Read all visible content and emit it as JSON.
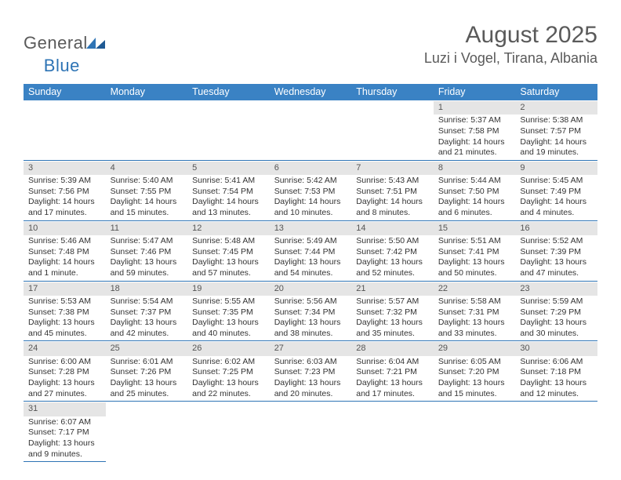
{
  "brand": {
    "part1": "General",
    "part2": "Blue"
  },
  "title": "August 2025",
  "location": "Luzi i Vogel, Tirana, Albania",
  "colors": {
    "header_bg": "#3a82c4",
    "header_text": "#ffffff",
    "daynum_bg": "#e5e5e5",
    "rule": "#2e74b5",
    "text": "#333333",
    "title_text": "#5a5a5a",
    "logo_blue": "#2e74b5"
  },
  "day_headers": [
    "Sunday",
    "Monday",
    "Tuesday",
    "Wednesday",
    "Thursday",
    "Friday",
    "Saturday"
  ],
  "weeks": [
    [
      null,
      null,
      null,
      null,
      null,
      {
        "n": "1",
        "sr": "5:37 AM",
        "ss": "7:58 PM",
        "dl": "14 hours and 21 minutes."
      },
      {
        "n": "2",
        "sr": "5:38 AM",
        "ss": "7:57 PM",
        "dl": "14 hours and 19 minutes."
      }
    ],
    [
      {
        "n": "3",
        "sr": "5:39 AM",
        "ss": "7:56 PM",
        "dl": "14 hours and 17 minutes."
      },
      {
        "n": "4",
        "sr": "5:40 AM",
        "ss": "7:55 PM",
        "dl": "14 hours and 15 minutes."
      },
      {
        "n": "5",
        "sr": "5:41 AM",
        "ss": "7:54 PM",
        "dl": "14 hours and 13 minutes."
      },
      {
        "n": "6",
        "sr": "5:42 AM",
        "ss": "7:53 PM",
        "dl": "14 hours and 10 minutes."
      },
      {
        "n": "7",
        "sr": "5:43 AM",
        "ss": "7:51 PM",
        "dl": "14 hours and 8 minutes."
      },
      {
        "n": "8",
        "sr": "5:44 AM",
        "ss": "7:50 PM",
        "dl": "14 hours and 6 minutes."
      },
      {
        "n": "9",
        "sr": "5:45 AM",
        "ss": "7:49 PM",
        "dl": "14 hours and 4 minutes."
      }
    ],
    [
      {
        "n": "10",
        "sr": "5:46 AM",
        "ss": "7:48 PM",
        "dl": "14 hours and 1 minute."
      },
      {
        "n": "11",
        "sr": "5:47 AM",
        "ss": "7:46 PM",
        "dl": "13 hours and 59 minutes."
      },
      {
        "n": "12",
        "sr": "5:48 AM",
        "ss": "7:45 PM",
        "dl": "13 hours and 57 minutes."
      },
      {
        "n": "13",
        "sr": "5:49 AM",
        "ss": "7:44 PM",
        "dl": "13 hours and 54 minutes."
      },
      {
        "n": "14",
        "sr": "5:50 AM",
        "ss": "7:42 PM",
        "dl": "13 hours and 52 minutes."
      },
      {
        "n": "15",
        "sr": "5:51 AM",
        "ss": "7:41 PM",
        "dl": "13 hours and 50 minutes."
      },
      {
        "n": "16",
        "sr": "5:52 AM",
        "ss": "7:39 PM",
        "dl": "13 hours and 47 minutes."
      }
    ],
    [
      {
        "n": "17",
        "sr": "5:53 AM",
        "ss": "7:38 PM",
        "dl": "13 hours and 45 minutes."
      },
      {
        "n": "18",
        "sr": "5:54 AM",
        "ss": "7:37 PM",
        "dl": "13 hours and 42 minutes."
      },
      {
        "n": "19",
        "sr": "5:55 AM",
        "ss": "7:35 PM",
        "dl": "13 hours and 40 minutes."
      },
      {
        "n": "20",
        "sr": "5:56 AM",
        "ss": "7:34 PM",
        "dl": "13 hours and 38 minutes."
      },
      {
        "n": "21",
        "sr": "5:57 AM",
        "ss": "7:32 PM",
        "dl": "13 hours and 35 minutes."
      },
      {
        "n": "22",
        "sr": "5:58 AM",
        "ss": "7:31 PM",
        "dl": "13 hours and 33 minutes."
      },
      {
        "n": "23",
        "sr": "5:59 AM",
        "ss": "7:29 PM",
        "dl": "13 hours and 30 minutes."
      }
    ],
    [
      {
        "n": "24",
        "sr": "6:00 AM",
        "ss": "7:28 PM",
        "dl": "13 hours and 27 minutes."
      },
      {
        "n": "25",
        "sr": "6:01 AM",
        "ss": "7:26 PM",
        "dl": "13 hours and 25 minutes."
      },
      {
        "n": "26",
        "sr": "6:02 AM",
        "ss": "7:25 PM",
        "dl": "13 hours and 22 minutes."
      },
      {
        "n": "27",
        "sr": "6:03 AM",
        "ss": "7:23 PM",
        "dl": "13 hours and 20 minutes."
      },
      {
        "n": "28",
        "sr": "6:04 AM",
        "ss": "7:21 PM",
        "dl": "13 hours and 17 minutes."
      },
      {
        "n": "29",
        "sr": "6:05 AM",
        "ss": "7:20 PM",
        "dl": "13 hours and 15 minutes."
      },
      {
        "n": "30",
        "sr": "6:06 AM",
        "ss": "7:18 PM",
        "dl": "13 hours and 12 minutes."
      }
    ],
    [
      {
        "n": "31",
        "sr": "6:07 AM",
        "ss": "7:17 PM",
        "dl": "13 hours and 9 minutes."
      },
      null,
      null,
      null,
      null,
      null,
      null
    ]
  ],
  "labels": {
    "sunrise": "Sunrise:",
    "sunset": "Sunset:",
    "daylight": "Daylight:"
  }
}
